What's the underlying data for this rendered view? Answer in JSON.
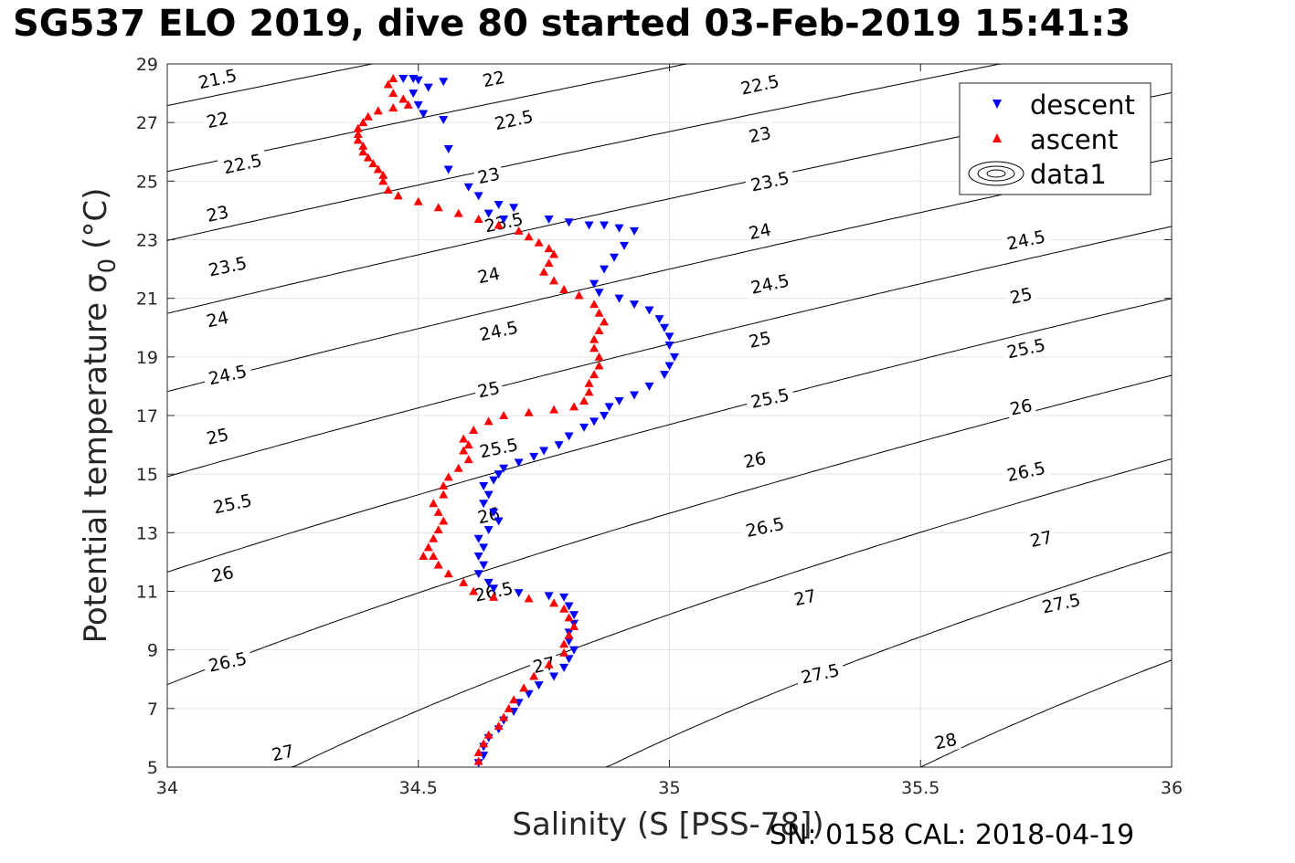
{
  "title": "SG537 ELO 2019, dive 80 started 03-Feb-2019 15:41:3",
  "footer": "SN: 0158  CAL: 2018-04-19",
  "chart_data": {
    "type": "scatter",
    "title": "SG537 ELO 2019, dive 80 started 03-Feb-2019 15:41:3",
    "xlabel": "Salinity (S [PSS-78])",
    "ylabel_main": "Potential temperature",
    "ylabel_sigma": "σ",
    "ylabel_sub": "0",
    "ylabel_unit": "(°C)",
    "xlim": [
      34,
      36
    ],
    "ylim": [
      5,
      29
    ],
    "xticks": [
      34,
      34.5,
      35,
      35.5,
      36
    ],
    "xtick_labels": [
      "34",
      "34.5",
      "35",
      "35.5",
      "36"
    ],
    "yticks": [
      5,
      7,
      9,
      11,
      13,
      15,
      17,
      19,
      21,
      23,
      25,
      27,
      29
    ],
    "ytick_labels": [
      "5",
      "7",
      "9",
      "11",
      "13",
      "15",
      "17",
      "19",
      "21",
      "23",
      "25",
      "27",
      "29"
    ],
    "grid": true,
    "legend_position": "top-right",
    "legend": [
      {
        "label": "descent",
        "marker": "triangle-down",
        "color": "#0000ff"
      },
      {
        "label": "ascent",
        "marker": "triangle-up",
        "color": "#ff0000"
      },
      {
        "label": "data1",
        "marker": "contour",
        "color": "#000000"
      }
    ],
    "density_contours": {
      "levels": [
        21.5,
        22,
        22.5,
        23,
        23.5,
        24,
        24.5,
        25,
        25.5,
        26,
        26.5,
        27,
        27.5,
        28
      ],
      "labels": [
        {
          "text": "21.5",
          "s": 34.1,
          "t": 28.5
        },
        {
          "text": "22",
          "s": 34.1,
          "t": 27.1
        },
        {
          "text": "22.5",
          "s": 34.15,
          "t": 25.6
        },
        {
          "text": "23",
          "s": 34.1,
          "t": 23.9
        },
        {
          "text": "23.5",
          "s": 34.12,
          "t": 22.1
        },
        {
          "text": "24",
          "s": 34.1,
          "t": 20.3
        },
        {
          "text": "24.5",
          "s": 34.12,
          "t": 18.4
        },
        {
          "text": "25",
          "s": 34.1,
          "t": 16.3
        },
        {
          "text": "25.5",
          "s": 34.13,
          "t": 14.0
        },
        {
          "text": "26",
          "s": 34.11,
          "t": 11.6
        },
        {
          "text": "26.5",
          "s": 34.12,
          "t": 8.6
        },
        {
          "text": "27",
          "s": 34.23,
          "t": 5.5
        },
        {
          "text": "22",
          "s": 34.65,
          "t": 28.5
        },
        {
          "text": "22.5",
          "s": 34.69,
          "t": 27.1
        },
        {
          "text": "23",
          "s": 34.64,
          "t": 25.2
        },
        {
          "text": "23.5",
          "s": 34.67,
          "t": 23.6
        },
        {
          "text": "24",
          "s": 34.64,
          "t": 21.8
        },
        {
          "text": "24.5",
          "s": 34.66,
          "t": 19.9
        },
        {
          "text": "25",
          "s": 34.64,
          "t": 17.9
        },
        {
          "text": "25.5",
          "s": 34.66,
          "t": 15.9
        },
        {
          "text": "26",
          "s": 34.64,
          "t": 13.6
        },
        {
          "text": "26.5",
          "s": 34.65,
          "t": 11.0
        },
        {
          "text": "27",
          "s": 34.75,
          "t": 8.5
        },
        {
          "text": "22.5",
          "s": 35.18,
          "t": 28.3
        },
        {
          "text": "23",
          "s": 35.18,
          "t": 26.6
        },
        {
          "text": "23.5",
          "s": 35.2,
          "t": 25.0
        },
        {
          "text": "24",
          "s": 35.18,
          "t": 23.3
        },
        {
          "text": "24.5",
          "s": 35.2,
          "t": 21.5
        },
        {
          "text": "25",
          "s": 35.18,
          "t": 19.6
        },
        {
          "text": "25.5",
          "s": 35.2,
          "t": 17.6
        },
        {
          "text": "26",
          "s": 35.17,
          "t": 15.5
        },
        {
          "text": "26.5",
          "s": 35.19,
          "t": 13.2
        },
        {
          "text": "27",
          "s": 35.27,
          "t": 10.8
        },
        {
          "text": "27.5",
          "s": 35.3,
          "t": 8.2
        },
        {
          "text": "28",
          "s": 35.55,
          "t": 5.9
        },
        {
          "text": "24.5",
          "s": 35.71,
          "t": 23.0
        },
        {
          "text": "25",
          "s": 35.7,
          "t": 21.1
        },
        {
          "text": "25.5",
          "s": 35.71,
          "t": 19.3
        },
        {
          "text": "26",
          "s": 35.7,
          "t": 17.3
        },
        {
          "text": "26.5",
          "s": 35.71,
          "t": 15.1
        },
        {
          "text": "27",
          "s": 35.74,
          "t": 12.8
        },
        {
          "text": "27.5",
          "s": 35.78,
          "t": 10.6
        }
      ]
    },
    "series": [
      {
        "name": "descent",
        "marker": "triangle-down",
        "color": "#0000ff",
        "points": [
          [
            34.47,
            28.5
          ],
          [
            34.49,
            28.5
          ],
          [
            34.5,
            28.45
          ],
          [
            34.55,
            28.4
          ],
          [
            34.52,
            28.2
          ],
          [
            34.49,
            28.0
          ],
          [
            34.5,
            27.6
          ],
          [
            34.51,
            27.3
          ],
          [
            34.55,
            27.1
          ],
          [
            34.56,
            26.1
          ],
          [
            34.56,
            25.4
          ],
          [
            34.6,
            24.8
          ],
          [
            34.62,
            24.5
          ],
          [
            34.66,
            24.2
          ],
          [
            34.69,
            24.1
          ],
          [
            34.64,
            23.9
          ],
          [
            34.67,
            23.7
          ],
          [
            34.76,
            23.7
          ],
          [
            34.8,
            23.6
          ],
          [
            34.84,
            23.5
          ],
          [
            34.87,
            23.5
          ],
          [
            34.9,
            23.4
          ],
          [
            34.93,
            23.3
          ],
          [
            34.91,
            22.8
          ],
          [
            34.89,
            22.4
          ],
          [
            34.87,
            22.0
          ],
          [
            34.85,
            21.5
          ],
          [
            34.86,
            21.2
          ],
          [
            34.9,
            21.0
          ],
          [
            34.93,
            20.8
          ],
          [
            34.96,
            20.6
          ],
          [
            34.98,
            20.3
          ],
          [
            34.99,
            20.0
          ],
          [
            35.0,
            19.7
          ],
          [
            35.0,
            19.4
          ],
          [
            35.01,
            19.0
          ],
          [
            35.0,
            18.7
          ],
          [
            34.99,
            18.4
          ],
          [
            34.96,
            18.0
          ],
          [
            34.93,
            17.7
          ],
          [
            34.9,
            17.5
          ],
          [
            34.88,
            17.3
          ],
          [
            34.87,
            17.0
          ],
          [
            34.85,
            16.8
          ],
          [
            34.83,
            16.6
          ],
          [
            34.8,
            16.3
          ],
          [
            34.78,
            16.0
          ],
          [
            34.75,
            15.8
          ],
          [
            34.73,
            15.6
          ],
          [
            34.7,
            15.4
          ],
          [
            34.67,
            15.2
          ],
          [
            34.66,
            15.0
          ],
          [
            34.65,
            14.8
          ],
          [
            34.63,
            14.6
          ],
          [
            34.64,
            14.3
          ],
          [
            34.63,
            14.0
          ],
          [
            34.65,
            13.7
          ],
          [
            34.66,
            13.4
          ],
          [
            34.64,
            13.1
          ],
          [
            34.62,
            12.8
          ],
          [
            34.63,
            12.5
          ],
          [
            34.62,
            12.2
          ],
          [
            34.63,
            11.9
          ],
          [
            34.62,
            11.6
          ],
          [
            34.64,
            11.3
          ],
          [
            34.65,
            11.1
          ],
          [
            34.7,
            10.95
          ],
          [
            34.76,
            10.85
          ],
          [
            34.79,
            10.8
          ],
          [
            34.8,
            10.5
          ],
          [
            34.81,
            10.2
          ],
          [
            34.81,
            9.9
          ],
          [
            34.8,
            9.6
          ],
          [
            34.8,
            9.3
          ],
          [
            34.81,
            9.0
          ],
          [
            34.8,
            8.7
          ],
          [
            34.79,
            8.4
          ],
          [
            34.77,
            8.1
          ],
          [
            34.74,
            7.8
          ],
          [
            34.72,
            7.5
          ],
          [
            34.7,
            7.2
          ],
          [
            34.69,
            6.9
          ],
          [
            34.67,
            6.6
          ],
          [
            34.66,
            6.3
          ],
          [
            34.64,
            6.0
          ],
          [
            34.63,
            5.7
          ],
          [
            34.63,
            5.4
          ],
          [
            34.62,
            5.15
          ]
        ]
      },
      {
        "name": "ascent",
        "marker": "triangle-up",
        "color": "#ff0000",
        "points": [
          [
            34.45,
            28.5
          ],
          [
            34.44,
            28.3
          ],
          [
            34.45,
            28.0
          ],
          [
            34.47,
            27.8
          ],
          [
            34.48,
            27.6
          ],
          [
            34.45,
            27.5
          ],
          [
            34.42,
            27.4
          ],
          [
            34.4,
            27.2
          ],
          [
            34.39,
            27.0
          ],
          [
            34.38,
            26.8
          ],
          [
            34.38,
            26.6
          ],
          [
            34.38,
            26.4
          ],
          [
            34.39,
            26.2
          ],
          [
            34.39,
            26.0
          ],
          [
            34.4,
            25.8
          ],
          [
            34.41,
            25.6
          ],
          [
            34.42,
            25.4
          ],
          [
            34.43,
            25.2
          ],
          [
            34.43,
            25.0
          ],
          [
            34.44,
            24.7
          ],
          [
            34.46,
            24.5
          ],
          [
            34.5,
            24.3
          ],
          [
            34.54,
            24.1
          ],
          [
            34.58,
            23.9
          ],
          [
            34.62,
            23.7
          ],
          [
            34.66,
            23.5
          ],
          [
            34.7,
            23.3
          ],
          [
            34.72,
            23.1
          ],
          [
            34.74,
            22.9
          ],
          [
            34.76,
            22.7
          ],
          [
            34.77,
            22.5
          ],
          [
            34.76,
            22.2
          ],
          [
            34.75,
            21.9
          ],
          [
            34.77,
            21.6
          ],
          [
            34.79,
            21.3
          ],
          [
            34.82,
            21.1
          ],
          [
            34.85,
            20.8
          ],
          [
            34.86,
            20.5
          ],
          [
            34.87,
            20.2
          ],
          [
            34.86,
            19.9
          ],
          [
            34.85,
            19.6
          ],
          [
            34.85,
            19.3
          ],
          [
            34.86,
            19.0
          ],
          [
            34.86,
            18.7
          ],
          [
            34.85,
            18.4
          ],
          [
            34.84,
            18.1
          ],
          [
            34.84,
            17.8
          ],
          [
            34.83,
            17.5
          ],
          [
            34.81,
            17.3
          ],
          [
            34.77,
            17.2
          ],
          [
            34.72,
            17.1
          ],
          [
            34.67,
            17.0
          ],
          [
            34.64,
            16.8
          ],
          [
            34.61,
            16.5
          ],
          [
            34.59,
            16.2
          ],
          [
            34.6,
            16.0
          ],
          [
            34.59,
            15.8
          ],
          [
            34.6,
            15.5
          ],
          [
            34.58,
            15.2
          ],
          [
            34.56,
            14.9
          ],
          [
            34.55,
            14.6
          ],
          [
            34.55,
            14.3
          ],
          [
            34.53,
            14.0
          ],
          [
            34.54,
            13.7
          ],
          [
            34.55,
            13.4
          ],
          [
            34.54,
            13.1
          ],
          [
            34.53,
            12.8
          ],
          [
            34.52,
            12.5
          ],
          [
            34.53,
            12.2
          ],
          [
            34.54,
            11.9
          ],
          [
            34.56,
            11.6
          ],
          [
            34.59,
            11.3
          ],
          [
            34.61,
            11.0
          ],
          [
            34.65,
            10.8
          ],
          [
            34.72,
            10.75
          ],
          [
            34.77,
            10.6
          ],
          [
            34.79,
            10.4
          ],
          [
            34.8,
            10.1
          ],
          [
            34.81,
            9.8
          ],
          [
            34.8,
            9.5
          ],
          [
            34.79,
            9.2
          ],
          [
            34.79,
            8.9
          ],
          [
            34.76,
            8.5
          ],
          [
            34.73,
            8.1
          ],
          [
            34.71,
            7.7
          ],
          [
            34.69,
            7.3
          ],
          [
            34.68,
            7.0
          ],
          [
            34.67,
            6.7
          ],
          [
            34.66,
            6.4
          ],
          [
            34.64,
            6.1
          ],
          [
            34.63,
            5.8
          ],
          [
            34.62,
            5.5
          ],
          [
            34.62,
            5.2
          ],
          [
            34.51,
            12.2
          ]
        ]
      }
    ]
  }
}
